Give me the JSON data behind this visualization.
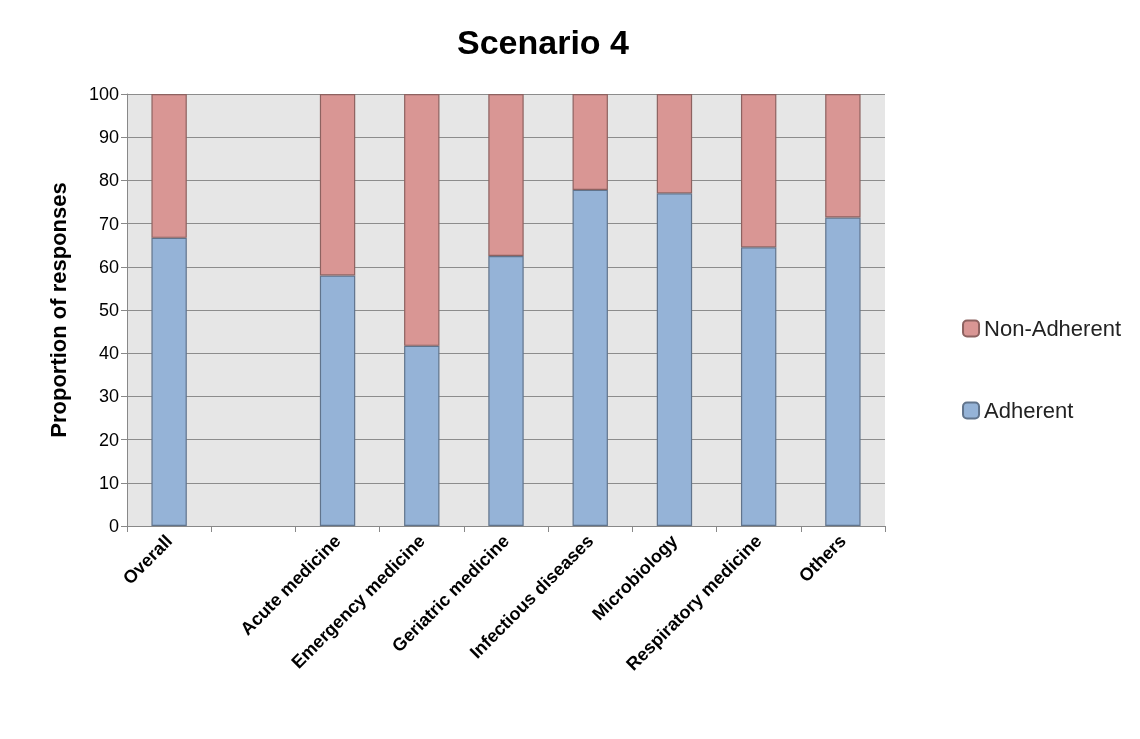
{
  "chart_data": {
    "type": "bar",
    "title": "Scenario 4",
    "ylabel": "Proportion of responses",
    "categories": [
      "Overall",
      null,
      "Acute medicine",
      "Emergency medicine",
      "Geriatric medicine",
      "Infectious diseases",
      "Microbiology",
      "Respiratory medicine",
      "Others"
    ],
    "series": [
      {
        "name": "Adherent",
        "color": "#95b3d7",
        "values": [
          66.7,
          null,
          58,
          41.7,
          62.5,
          77.8,
          77,
          64.5,
          71.4
        ]
      },
      {
        "name": "Non-Adherent",
        "color": "#d99694",
        "values": [
          33.3,
          null,
          42,
          58.3,
          37.5,
          22.2,
          23,
          35.5,
          28.6
        ]
      }
    ],
    "stacked": true,
    "ylim": [
      0,
      100
    ],
    "yticks": [
      0,
      10,
      20,
      30,
      40,
      50,
      60,
      70,
      80,
      90,
      100
    ],
    "grid": "y",
    "legend": "right"
  }
}
